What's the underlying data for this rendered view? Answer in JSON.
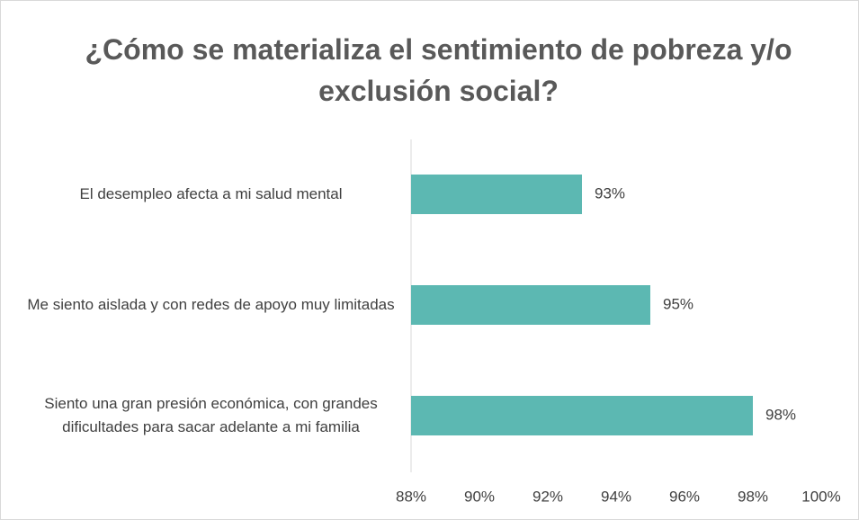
{
  "chart_data": {
    "type": "bar",
    "orientation": "horizontal",
    "title": "¿Cómo se materializa el sentimiento de pobreza y/o exclusión social?",
    "categories": [
      "El desempleo afecta a mi salud mental",
      "Me siento aislada y con redes de apoyo muy limitadas",
      "Siento una gran presión económica, con grandes dificultades para sacar adelante a mi familia"
    ],
    "values": [
      93,
      95,
      98
    ],
    "value_labels": [
      "93%",
      "95%",
      "98%"
    ],
    "color": "#5cb8b2",
    "xlim": [
      88,
      100
    ],
    "xticks": [
      {
        "value": 88,
        "label": "88%"
      },
      {
        "value": 90,
        "label": "90%"
      },
      {
        "value": 92,
        "label": "92%"
      },
      {
        "value": 94,
        "label": "94%"
      },
      {
        "value": 96,
        "label": "96%"
      },
      {
        "value": 98,
        "label": "98%"
      },
      {
        "value": 100,
        "label": "100%"
      }
    ],
    "grid": false
  }
}
